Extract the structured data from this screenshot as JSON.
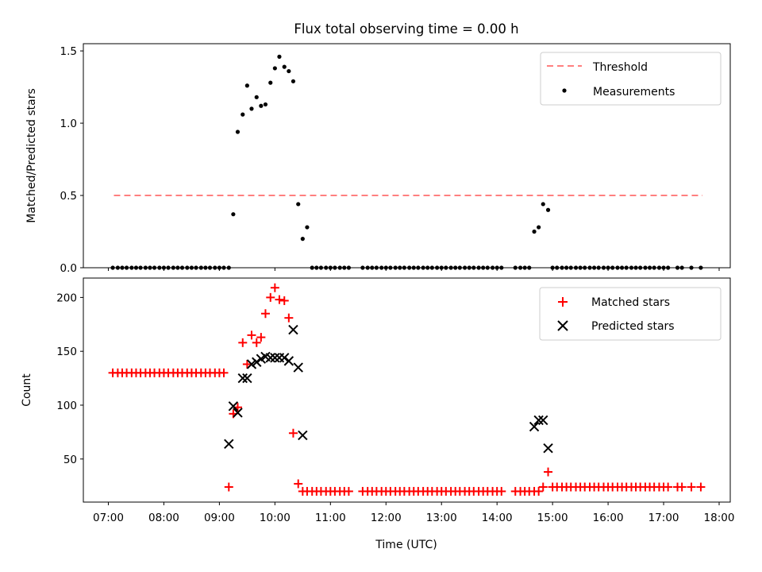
{
  "chart_data": {
    "type": "scatter",
    "title": "Flux total observing time = 0.00 h",
    "xlabel": "Time (UTC)",
    "x_ticks": [
      "07:00",
      "08:00",
      "09:00",
      "10:00",
      "11:00",
      "12:00",
      "13:00",
      "14:00",
      "15:00",
      "16:00",
      "17:00",
      "18:00"
    ],
    "top": {
      "ylabel": "Matched/Predicted stars",
      "ylim": [
        0,
        1.55
      ],
      "y_ticks": [
        "0.0",
        "0.5",
        "1.0",
        "1.5"
      ],
      "threshold": {
        "name": "Threshold",
        "value": 0.5,
        "x_start": 7.1,
        "x_end": 17.7,
        "color": "#ff7f7f"
      },
      "measurements": {
        "name": "Measurements",
        "color": "#000000",
        "x": [
          7.08,
          7.17,
          7.25,
          7.33,
          7.42,
          7.5,
          7.58,
          7.67,
          7.75,
          7.83,
          7.92,
          8.0,
          8.08,
          8.17,
          8.25,
          8.33,
          8.42,
          8.5,
          8.58,
          8.67,
          8.75,
          8.83,
          8.92,
          9.0,
          9.08,
          9.17,
          9.25,
          9.33,
          9.42,
          9.5,
          9.58,
          9.67,
          9.75,
          9.83,
          9.92,
          10.0,
          10.08,
          10.17,
          10.25,
          10.33,
          10.42,
          10.5,
          10.58,
          10.67,
          10.75,
          10.83,
          10.92,
          11.0,
          11.08,
          11.17,
          11.25,
          11.33,
          11.58,
          11.67,
          11.75,
          11.83,
          11.92,
          12.0,
          12.08,
          12.17,
          12.25,
          12.33,
          12.42,
          12.5,
          12.58,
          12.67,
          12.75,
          12.83,
          12.92,
          13.0,
          13.08,
          13.17,
          13.25,
          13.33,
          13.42,
          13.5,
          13.58,
          13.67,
          13.75,
          13.83,
          13.92,
          14.0,
          14.08,
          14.33,
          14.42,
          14.5,
          14.58,
          14.67,
          14.75,
          14.83,
          14.92,
          15.0,
          15.08,
          15.17,
          15.25,
          15.33,
          15.42,
          15.5,
          15.58,
          15.67,
          15.75,
          15.83,
          15.92,
          16.0,
          16.08,
          16.17,
          16.25,
          16.33,
          16.42,
          16.5,
          16.58,
          16.67,
          16.75,
          16.83,
          16.92,
          17.0,
          17.08,
          17.25,
          17.33,
          17.5,
          17.67
        ],
        "y": [
          0,
          0,
          0,
          0,
          0,
          0,
          0,
          0,
          0,
          0,
          0,
          0,
          0,
          0,
          0,
          0,
          0,
          0,
          0,
          0,
          0,
          0,
          0,
          0,
          0,
          0,
          0.37,
          0.94,
          1.06,
          1.26,
          1.1,
          1.18,
          1.12,
          1.13,
          1.28,
          1.38,
          1.46,
          1.39,
          1.36,
          1.29,
          0.44,
          0.2,
          0.28,
          0,
          0,
          0,
          0,
          0,
          0,
          0,
          0,
          0,
          0,
          0,
          0,
          0,
          0,
          0,
          0,
          0,
          0,
          0,
          0,
          0,
          0,
          0,
          0,
          0,
          0,
          0,
          0,
          0,
          0,
          0,
          0,
          0,
          0,
          0,
          0,
          0,
          0,
          0,
          0,
          0,
          0,
          0,
          0,
          0.25,
          0.28,
          0.44,
          0.4,
          0,
          0,
          0,
          0,
          0,
          0,
          0,
          0,
          0,
          0,
          0,
          0,
          0,
          0,
          0,
          0,
          0,
          0,
          0,
          0,
          0,
          0,
          0,
          0,
          0,
          0,
          0,
          0,
          0,
          0
        ]
      }
    },
    "bottom": {
      "ylabel": "Count",
      "ylim": [
        10,
        218
      ],
      "y_ticks": [
        "50",
        "100",
        "150",
        "200"
      ],
      "matched": {
        "name": "Matched stars",
        "color": "#ff0000",
        "x": [
          7.08,
          7.17,
          7.25,
          7.33,
          7.42,
          7.5,
          7.58,
          7.67,
          7.75,
          7.83,
          7.92,
          8.0,
          8.08,
          8.17,
          8.25,
          8.33,
          8.42,
          8.5,
          8.58,
          8.67,
          8.75,
          8.83,
          8.92,
          9.0,
          9.08,
          9.17,
          9.25,
          9.33,
          9.42,
          9.5,
          9.58,
          9.67,
          9.75,
          9.83,
          9.92,
          10.0,
          10.08,
          10.17,
          10.25,
          10.33,
          10.42,
          10.5,
          10.58,
          10.67,
          10.75,
          10.83,
          10.92,
          11.0,
          11.08,
          11.17,
          11.25,
          11.33,
          11.58,
          11.67,
          11.75,
          11.83,
          11.92,
          12.0,
          12.08,
          12.17,
          12.25,
          12.33,
          12.42,
          12.5,
          12.58,
          12.67,
          12.75,
          12.83,
          12.92,
          13.0,
          13.08,
          13.17,
          13.25,
          13.33,
          13.42,
          13.5,
          13.58,
          13.67,
          13.75,
          13.83,
          13.92,
          14.0,
          14.08,
          14.33,
          14.42,
          14.5,
          14.58,
          14.67,
          14.75,
          14.83,
          14.92,
          15.0,
          15.08,
          15.17,
          15.25,
          15.33,
          15.42,
          15.5,
          15.58,
          15.67,
          15.75,
          15.83,
          15.92,
          16.0,
          16.08,
          16.17,
          16.25,
          16.33,
          16.42,
          16.5,
          16.58,
          16.67,
          16.75,
          16.83,
          16.92,
          17.0,
          17.08,
          17.25,
          17.33,
          17.5,
          17.67
        ],
        "y": [
          130,
          130,
          130,
          130,
          130,
          130,
          130,
          130,
          130,
          130,
          130,
          130,
          130,
          130,
          130,
          130,
          130,
          130,
          130,
          130,
          130,
          130,
          130,
          130,
          130,
          24,
          92,
          98,
          158,
          138,
          165,
          158,
          163,
          185,
          200,
          209,
          198,
          197,
          181,
          74,
          27,
          20,
          20,
          20,
          20,
          20,
          20,
          20,
          20,
          20,
          20,
          20,
          20,
          20,
          20,
          20,
          20,
          20,
          20,
          20,
          20,
          20,
          20,
          20,
          20,
          20,
          20,
          20,
          20,
          20,
          20,
          20,
          20,
          20,
          20,
          20,
          20,
          20,
          20,
          20,
          20,
          20,
          20,
          20,
          20,
          20,
          20,
          20,
          20,
          24,
          38,
          24,
          24,
          24,
          24,
          24,
          24,
          24,
          24,
          24,
          24,
          24,
          24,
          24,
          24,
          24,
          24,
          24,
          24,
          24,
          24,
          24,
          24,
          24,
          24,
          24,
          24,
          24,
          24,
          24,
          24
        ]
      },
      "predicted": {
        "name": "Predicted stars",
        "color": "#000000",
        "x": [
          9.17,
          9.25,
          9.33,
          9.42,
          9.5,
          9.58,
          9.67,
          9.75,
          9.83,
          9.92,
          10.0,
          10.08,
          10.17,
          10.25,
          10.33,
          10.42,
          10.5,
          14.67,
          14.75,
          14.83,
          14.92
        ],
        "y": [
          64,
          99,
          93,
          125,
          125,
          138,
          140,
          143,
          145,
          144,
          144,
          144,
          144,
          141,
          170,
          135,
          72,
          80,
          86,
          86,
          60
        ]
      }
    }
  }
}
